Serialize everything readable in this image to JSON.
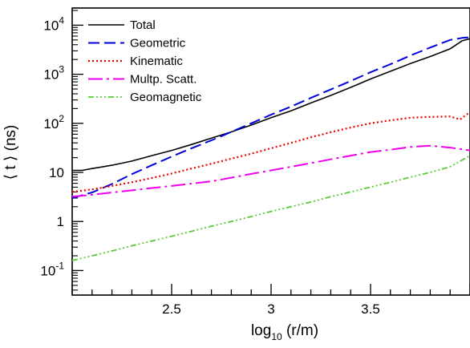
{
  "chart_data": {
    "type": "line",
    "xlabel": "log_10 (r/m)",
    "xlabel_main": "log",
    "xlabel_sub": "10",
    "xlabel_tail": " (r/m)",
    "ylabel": "⟨ t ⟩ (ns)",
    "xlim": [
      2.0,
      4.0
    ],
    "ylim_log10": [
      -1.5,
      4.35
    ],
    "y_scale": "log",
    "grid": false,
    "legend_position": "top-left",
    "x_ticks": [
      {
        "value": 2.5,
        "label": "2.5"
      },
      {
        "value": 3.0,
        "label": "3"
      },
      {
        "value": 3.5,
        "label": "3.5"
      }
    ],
    "y_ticks": [
      {
        "exp": 4,
        "base": "10",
        "sup": "4"
      },
      {
        "exp": 3,
        "base": "10",
        "sup": "3"
      },
      {
        "exp": 2,
        "base": "10",
        "sup": "2"
      },
      {
        "exp": 1,
        "base": "10",
        "sup": ""
      },
      {
        "exp": 0,
        "base": "1",
        "sup": ""
      },
      {
        "exp": -1,
        "base": "10",
        "sup": "-1"
      }
    ],
    "series": [
      {
        "name": "Total",
        "color": "#000000",
        "dash": "",
        "width": 1.6,
        "x": [
          2.0,
          2.05,
          2.1,
          2.2,
          2.3,
          2.4,
          2.5,
          2.6,
          2.7,
          2.8,
          2.9,
          3.0,
          3.1,
          3.2,
          3.3,
          3.4,
          3.5,
          3.6,
          3.7,
          3.8,
          3.9,
          3.96,
          4.0
        ],
        "y": [
          11,
          11,
          12,
          14,
          17,
          22,
          28,
          37,
          50,
          67,
          92,
          130,
          180,
          260,
          370,
          540,
          800,
          1150,
          1650,
          2300,
          3300,
          4800,
          5300
        ]
      },
      {
        "name": "Geometric",
        "color": "#0000dd",
        "dash": "14,6",
        "width": 2,
        "x": [
          2.0,
          2.1,
          2.2,
          2.3,
          2.4,
          2.5,
          2.6,
          2.7,
          2.8,
          2.9,
          3.0,
          3.1,
          3.2,
          3.3,
          3.4,
          3.5,
          3.6,
          3.7,
          3.8,
          3.9,
          3.96,
          4.0
        ],
        "y": [
          3.0,
          3.9,
          5.8,
          9.2,
          14,
          21,
          31,
          45,
          67,
          100,
          150,
          220,
          330,
          490,
          730,
          1100,
          1600,
          2400,
          3500,
          5000,
          5500,
          5700
        ]
      },
      {
        "name": "Kinematic",
        "color": "#ee0000",
        "dash": "2,3",
        "width": 2.2,
        "x": [
          2.0,
          2.1,
          2.2,
          2.3,
          2.4,
          2.5,
          2.6,
          2.7,
          2.8,
          2.9,
          3.0,
          3.1,
          3.2,
          3.3,
          3.4,
          3.5,
          3.6,
          3.7,
          3.8,
          3.9,
          3.95,
          4.0
        ],
        "y": [
          4.0,
          4.5,
          5.3,
          6.3,
          7.7,
          9.5,
          12,
          15,
          19,
          24,
          31,
          40,
          52,
          66,
          82,
          100,
          115,
          130,
          135,
          138,
          120,
          170
        ]
      },
      {
        "name": "Multp. Scatt.",
        "color": "#ee00ee",
        "dash": "18,5,3,5",
        "width": 2,
        "x": [
          2.0,
          2.1,
          2.2,
          2.3,
          2.4,
          2.5,
          2.6,
          2.7,
          2.8,
          2.9,
          3.0,
          3.1,
          3.2,
          3.3,
          3.4,
          3.5,
          3.6,
          3.7,
          3.8,
          3.9,
          4.0
        ],
        "y": [
          3.2,
          3.5,
          3.9,
          4.3,
          4.8,
          5.3,
          5.9,
          6.6,
          7.8,
          9.3,
          11,
          13,
          15.5,
          18.5,
          22,
          26,
          29,
          33,
          35,
          32,
          28
        ]
      },
      {
        "name": "Geomagnetic",
        "color": "#55cc33",
        "dash": "7,3,2,3,2,3,2,3",
        "width": 1.8,
        "x": [
          2.0,
          2.1,
          2.2,
          2.3,
          2.4,
          2.5,
          2.6,
          2.7,
          2.8,
          2.9,
          3.0,
          3.1,
          3.2,
          3.3,
          3.4,
          3.5,
          3.6,
          3.7,
          3.8,
          3.9,
          4.0
        ],
        "y": [
          0.16,
          0.2,
          0.25,
          0.32,
          0.4,
          0.5,
          0.63,
          0.8,
          1.0,
          1.26,
          1.6,
          2.0,
          2.5,
          3.2,
          4.0,
          5.0,
          6.3,
          8.0,
          10,
          13,
          22
        ]
      }
    ]
  }
}
